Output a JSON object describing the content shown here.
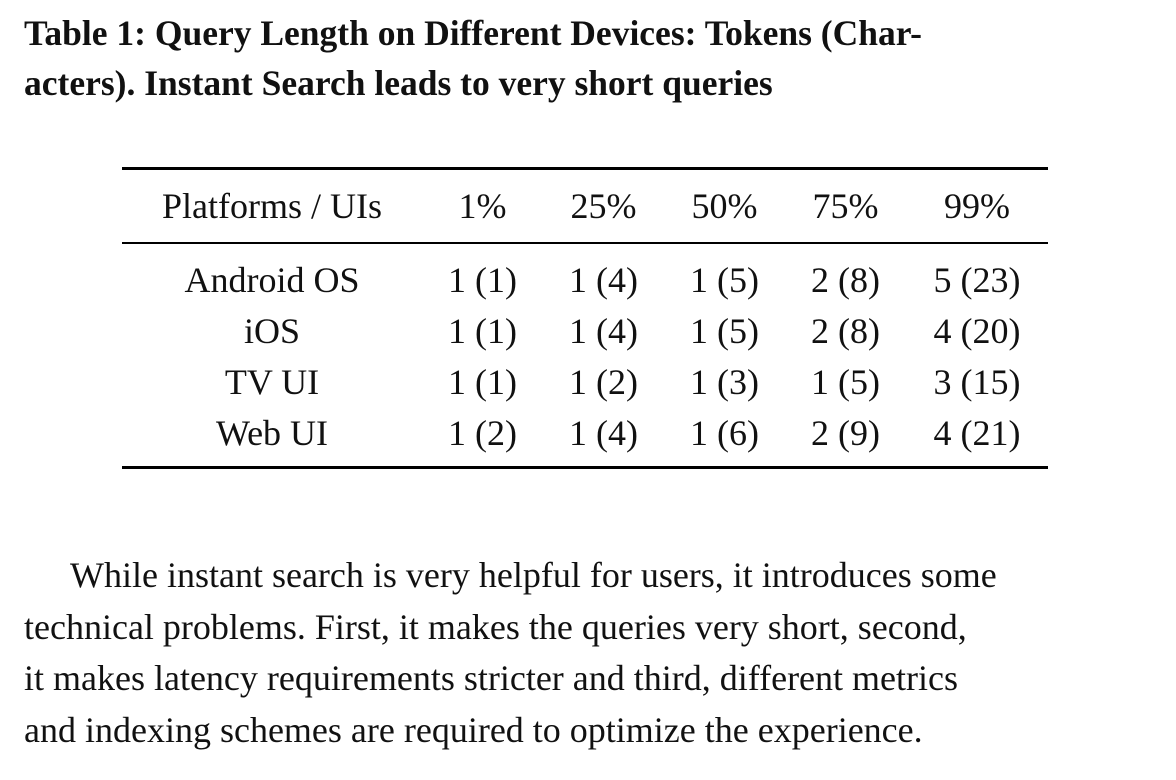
{
  "caption": {
    "line1": "Table 1: Query Length on Different Devices: Tokens (Char-",
    "line2": "acters). Instant Search leads to very short queries"
  },
  "table": {
    "headers": [
      "Platforms / UIs",
      "1%",
      "25%",
      "50%",
      "75%",
      "99%"
    ],
    "rows": [
      [
        "Android OS",
        "1 (1)",
        "1 (4)",
        "1 (5)",
        "2 (8)",
        "5 (23)"
      ],
      [
        "iOS",
        "1 (1)",
        "1 (4)",
        "1 (5)",
        "2 (8)",
        "4 (20)"
      ],
      [
        "TV UI",
        "1 (1)",
        "1 (2)",
        "1 (3)",
        "1 (5)",
        "3 (15)"
      ],
      [
        "Web UI",
        "1 (2)",
        "1 (4)",
        "1 (6)",
        "2 (9)",
        "4 (21)"
      ]
    ]
  },
  "paragraph": {
    "lines": [
      "While instant search is very helpful for users, it introduces some",
      "technical problems. First, it makes the queries very short, second,",
      "it makes latency requirements stricter and third, different metrics",
      "and indexing schemes are required to optimize the experience."
    ]
  }
}
